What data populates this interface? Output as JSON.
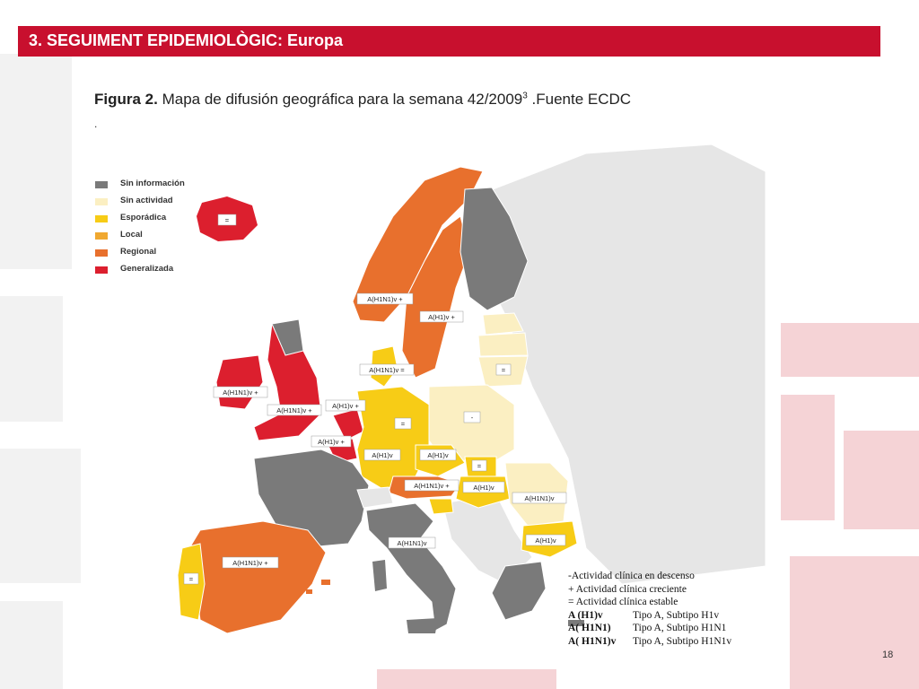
{
  "header": {
    "title": "3. SEGUIMENT EPIDEMIOLÒGIC: Europa"
  },
  "figure": {
    "caption_label": "Figura 2.",
    "caption_text": " Mapa de difusión geográfica para la semana 42/2009",
    "caption_superscript": "3",
    "caption_source": " .Fuente ECDC",
    "caption_dot": "."
  },
  "colors": {
    "sin_informacion": "#7a7a7a",
    "sin_actividad": "#fbefc2",
    "esporadica": "#f7cc16",
    "local": "#f0a830",
    "regional": "#e8702d",
    "generalizada": "#dc1f2e",
    "no_data": "#e6e6e6",
    "sea": "#ffffff",
    "brand": "#c8102e"
  },
  "legend": [
    {
      "label": "Sin información",
      "color": "#7a7a7a"
    },
    {
      "label": "Sin actividad",
      "color": "#fbefc2"
    },
    {
      "label": "Esporádica",
      "color": "#f7cc16"
    },
    {
      "label": "Local",
      "color": "#f0a830"
    },
    {
      "label": "Regional",
      "color": "#e8702d"
    },
    {
      "label": "Generalizada",
      "color": "#dc1f2e"
    }
  ],
  "regions": [
    {
      "name": "Iceland",
      "level": "generalizada",
      "note": "="
    },
    {
      "name": "Norway",
      "level": "regional",
      "note": "A(H1N1)v +"
    },
    {
      "name": "Sweden",
      "level": "regional",
      "note": "A(H1)v +"
    },
    {
      "name": "Finland",
      "level": "sin_informacion",
      "note": ""
    },
    {
      "name": "Denmark",
      "level": "esporadica",
      "note": "A(H1N1)v ="
    },
    {
      "name": "Ireland",
      "level": "generalizada",
      "note": "A(H1N1)v +"
    },
    {
      "name": "United Kingdom",
      "level": "generalizada",
      "note": "A(H1N1)v +"
    },
    {
      "name": "Netherlands",
      "level": "generalizada",
      "note": "A(H1)v +"
    },
    {
      "name": "Belgium",
      "level": "generalizada",
      "note": "A(H1)v +"
    },
    {
      "name": "Germany",
      "level": "esporadica",
      "note": "A(H1)v"
    },
    {
      "name": "Germany-2",
      "level": "esporadica",
      "note": "="
    },
    {
      "name": "Poland",
      "level": "sin_actividad",
      "note": "-"
    },
    {
      "name": "Czech Republic",
      "level": "esporadica",
      "note": "A(H1)v"
    },
    {
      "name": "Slovakia",
      "level": "esporadica",
      "note": "="
    },
    {
      "name": "Austria",
      "level": "regional",
      "note": "A(H1N1)v +"
    },
    {
      "name": "Hungary",
      "level": "esporadica",
      "note": "A(H1)v"
    },
    {
      "name": "Romania",
      "level": "sin_actividad",
      "note": "A(H1N1)v"
    },
    {
      "name": "Bulgaria",
      "level": "esporadica",
      "note": "A(H1)v"
    },
    {
      "name": "Lithuania",
      "level": "sin_actividad",
      "note": "="
    },
    {
      "name": "Latvia",
      "level": "sin_actividad",
      "note": ""
    },
    {
      "name": "Estonia",
      "level": "sin_actividad",
      "note": ""
    },
    {
      "name": "France",
      "level": "sin_informacion",
      "note": ""
    },
    {
      "name": "Switzerland",
      "level": "no_data",
      "note": ""
    },
    {
      "name": "Italy",
      "level": "sin_informacion",
      "note": "A(H1N1)v"
    },
    {
      "name": "Spain",
      "level": "regional",
      "note": "A(H1N1)v +"
    },
    {
      "name": "Portugal",
      "level": "esporadica",
      "note": "="
    },
    {
      "name": "Greece",
      "level": "sin_informacion",
      "note": ""
    },
    {
      "name": "Slovenia",
      "level": "esporadica",
      "note": ""
    }
  ],
  "key": {
    "lines": [
      "-Actividad clínica en descenso",
      "+  Actividad clínica creciente",
      "=  Actividad clínica estable"
    ],
    "subtypes": [
      {
        "code": "A (H1)v",
        "desc": "Tipo A, Subtipo H1v"
      },
      {
        "code": "A( H1N1)",
        "desc": "Tipo A, Subtipo H1N1"
      },
      {
        "code": "A( H1N1)v",
        "desc": "Tipo A, Subtipo H1N1v"
      }
    ]
  },
  "page_number": "18"
}
